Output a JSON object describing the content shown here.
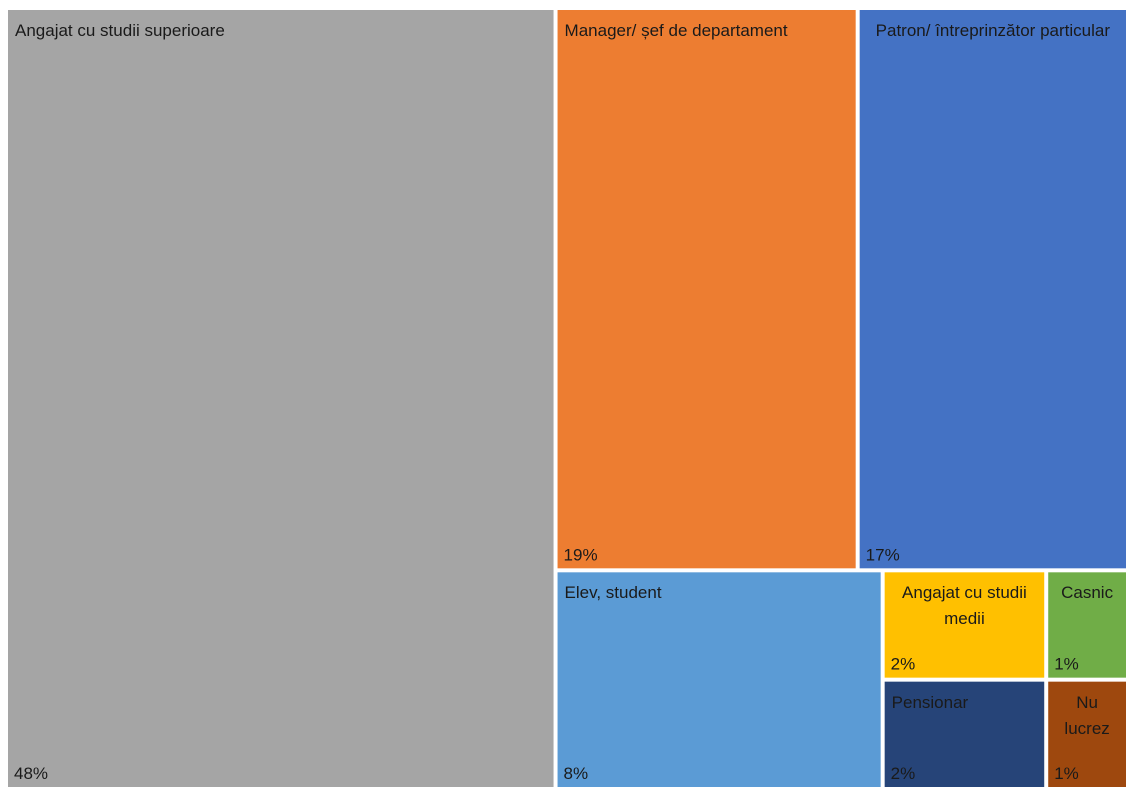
{
  "chart_data": {
    "type": "treemap",
    "categories": [
      "Angajat cu studii superioare",
      "Manager/ șef de departament",
      "Patron/ întreprinzător particular",
      "Elev, student",
      "Angajat cu studii medii",
      "Pensionar",
      "Casnic",
      "Nu lucrez"
    ],
    "values": [
      48,
      19,
      17,
      8,
      2,
      2,
      1,
      1
    ],
    "value_labels": [
      "48%",
      "19%",
      "17%",
      "8%",
      "2%",
      "2%",
      "1%",
      "1%"
    ],
    "colors": [
      "#a5a5a5",
      "#ed7d31",
      "#4472c4",
      "#5b9bd5",
      "#ffc000",
      "#264478",
      "#70ad47",
      "#9e480e"
    ]
  }
}
